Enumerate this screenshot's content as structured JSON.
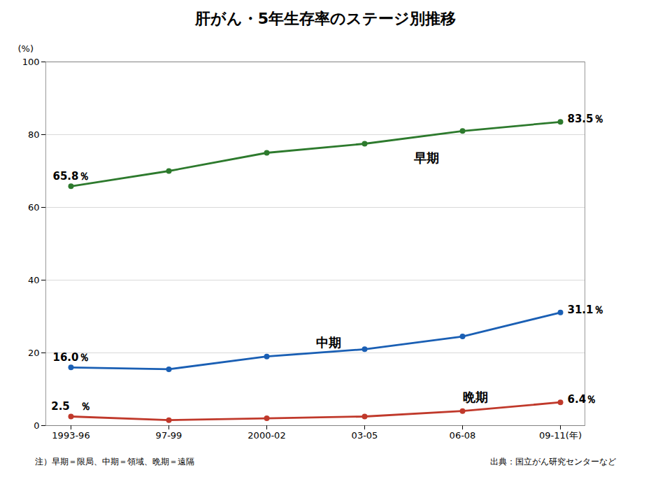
{
  "chart_data": {
    "type": "line",
    "title": "肝がん・5年生存率のステージ別推移",
    "y_label": "(%)",
    "categories": [
      "1993-96",
      "97-99",
      "2000-02",
      "03-05",
      "06-08",
      "09-11(年)"
    ],
    "series": [
      {
        "name": "早期",
        "color": "#2d7a2d",
        "values": [
          65.8,
          70.0,
          75.0,
          77.5,
          81.0,
          83.5
        ],
        "value_labels": [
          "65.8％",
          null,
          null,
          null,
          null,
          "83.5％"
        ]
      },
      {
        "name": "中期",
        "color": "#1a5fb4",
        "values": [
          16.0,
          15.5,
          19.0,
          21.0,
          24.5,
          31.1
        ],
        "value_labels": [
          "16.0％",
          null,
          null,
          null,
          null,
          "31.1％"
        ]
      },
      {
        "name": "晩期",
        "color": "#c0392b",
        "values": [
          2.5,
          1.5,
          2.0,
          2.5,
          4.0,
          6.4
        ],
        "value_labels": [
          "2.5　％",
          null,
          null,
          null,
          null,
          "6.4％"
        ]
      }
    ],
    "marker": "circle",
    "ylim": [
      0,
      100
    ],
    "yticks": [
      0,
      20,
      40,
      60,
      80,
      100
    ],
    "grid": true,
    "notes": [
      "注）早期＝限局、中期＝領域、晩期＝遠隔",
      "出典：国立がん研究センターなど"
    ]
  }
}
